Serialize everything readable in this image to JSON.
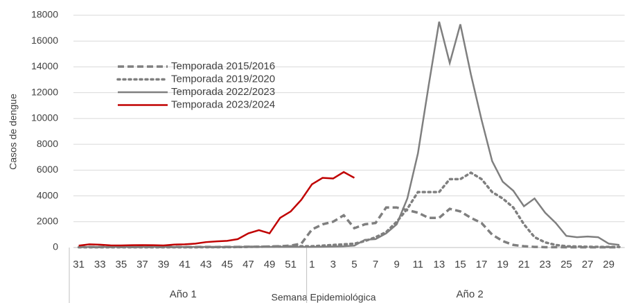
{
  "chart_data": {
    "type": "line",
    "y_label": "Casos de dengue",
    "x_label": "Semana Epidemiológica",
    "x_groups": [
      "Año 1",
      "Año 2"
    ],
    "categories": [
      31,
      null,
      33,
      null,
      35,
      null,
      37,
      null,
      39,
      null,
      41,
      null,
      43,
      null,
      45,
      null,
      47,
      null,
      49,
      null,
      51,
      null,
      1,
      null,
      3,
      null,
      5,
      null,
      7,
      null,
      9,
      null,
      11,
      null,
      13,
      null,
      15,
      null,
      17,
      null,
      19,
      null,
      21,
      null,
      23,
      null,
      25,
      null,
      27,
      null,
      29,
      null
    ],
    "ylim": [
      0,
      18000
    ],
    "yticks": [
      0,
      2000,
      4000,
      6000,
      8000,
      10000,
      12000,
      14000,
      16000,
      18000
    ],
    "grid": true,
    "legend": "upper left",
    "series": [
      {
        "name": "Temporada 2015/2016",
        "color": "#7f7f7f",
        "style": "dashed",
        "values": [
          50,
          40,
          40,
          50,
          40,
          40,
          50,
          40,
          40,
          50,
          40,
          40,
          50,
          40,
          50,
          50,
          60,
          60,
          80,
          100,
          150,
          300,
          1400,
          1800,
          2000,
          2500,
          1500,
          1800,
          1900,
          3100,
          3100,
          2900,
          2700,
          2300,
          2300,
          3000,
          2800,
          2300,
          1900,
          1000,
          500,
          200,
          100,
          50,
          30,
          30,
          20,
          20,
          20,
          20,
          20,
          20
        ]
      },
      {
        "name": "Temporada 2019/2020",
        "color": "#7f7f7f",
        "style": "dotted",
        "values": [
          20,
          20,
          20,
          20,
          20,
          20,
          20,
          20,
          20,
          20,
          20,
          20,
          30,
          30,
          30,
          40,
          50,
          60,
          70,
          80,
          90,
          100,
          100,
          150,
          200,
          250,
          300,
          500,
          800,
          1200,
          2000,
          3000,
          4300,
          4300,
          4300,
          5300,
          5300,
          5800,
          5300,
          4300,
          3800,
          3100,
          1800,
          800,
          400,
          200,
          100,
          80,
          60,
          50,
          50,
          50
        ]
      },
      {
        "name": "Temporada 2022/2023",
        "color": "#7f7f7f",
        "style": "solid",
        "values": [
          50,
          50,
          50,
          50,
          50,
          50,
          50,
          50,
          50,
          50,
          50,
          50,
          50,
          50,
          50,
          50,
          50,
          50,
          50,
          50,
          50,
          50,
          50,
          60,
          80,
          100,
          150,
          600,
          650,
          1100,
          1800,
          3800,
          7300,
          12500,
          17500,
          14300,
          17300,
          13400,
          9900,
          6700,
          5100,
          4400,
          3200,
          3800,
          2700,
          1900,
          900,
          800,
          850,
          800,
          300,
          200
        ]
      },
      {
        "name": "Temporada 2023/2024",
        "color": "#c00000",
        "style": "solid",
        "values": [
          150,
          250,
          220,
          170,
          160,
          180,
          190,
          180,
          160,
          230,
          250,
          300,
          420,
          480,
          520,
          650,
          1100,
          1350,
          1100,
          2300,
          2800,
          3700,
          4900,
          5400,
          5350,
          5850,
          5400,
          null,
          null,
          null,
          null,
          null,
          null,
          null,
          null,
          null,
          null,
          null,
          null,
          null,
          null,
          null,
          null,
          null,
          null,
          null,
          null,
          null,
          null,
          null,
          null,
          null
        ]
      }
    ]
  }
}
